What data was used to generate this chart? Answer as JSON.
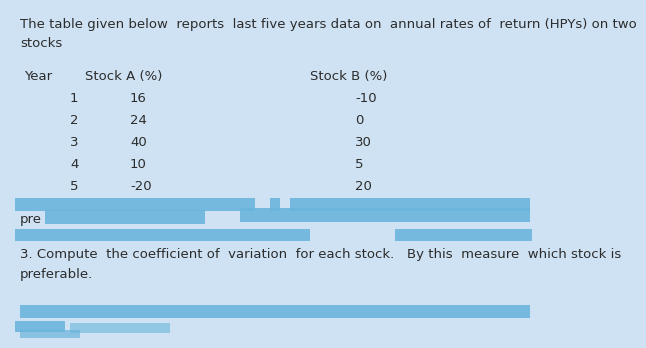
{
  "background_color": "#cfe2f3",
  "title_text": "The table given below  reports  last five years data on  annual rates of  return (HPYs) on two\nstocks",
  "header_year": "Year",
  "header_stock_a": "Stock A (%)",
  "header_stock_b": "Stock B (%)",
  "years": [
    1,
    2,
    3,
    4,
    5
  ],
  "stock_a": [
    16,
    24,
    40,
    10,
    -20
  ],
  "stock_b": [
    -10,
    0,
    30,
    5,
    20
  ],
  "pre_text": "pre",
  "question3_text": "3. Compute  the coefficient of  variation  for each stock.   By this  measure  which stock is\npreferable.",
  "scribble_color": "#6ab4dc",
  "text_color": "#2c2c2c",
  "font_size": 9.5
}
